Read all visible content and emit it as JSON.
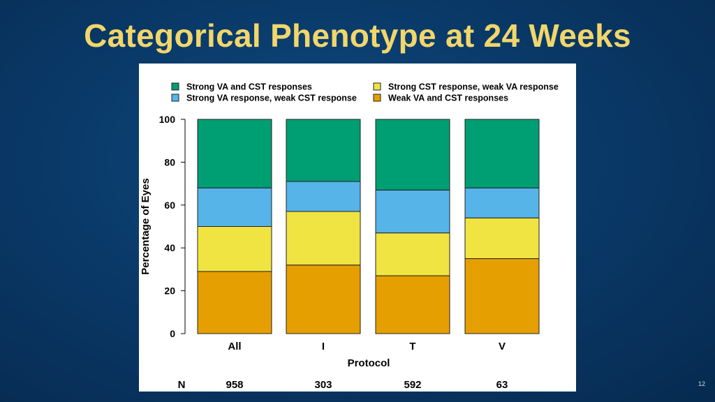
{
  "slide": {
    "title": "Categorical Phenotype at 24 Weeks",
    "page_number": "12"
  },
  "chart_data": {
    "type": "bar",
    "stacked": true,
    "xlabel": "Protocol",
    "ylabel": "Percentage of Eyes",
    "ylim": [
      0,
      100
    ],
    "yticks": [
      0,
      20,
      40,
      60,
      80,
      100
    ],
    "categories": [
      "All",
      "I",
      "T",
      "V"
    ],
    "n_label": "N",
    "n_values": [
      "958",
      "303",
      "592",
      "63"
    ],
    "legend_position": "top",
    "series": [
      {
        "name": "Weak VA and CST responses",
        "color": "#e69f00",
        "values": [
          29,
          32,
          27,
          35
        ]
      },
      {
        "name": "Strong CST response, weak VA response",
        "color": "#f0e442",
        "values": [
          21,
          25,
          20,
          19
        ]
      },
      {
        "name": "Strong VA response, weak CST response",
        "color": "#56b4e9",
        "values": [
          18,
          14,
          20,
          14
        ]
      },
      {
        "name": "Strong VA and CST responses",
        "color": "#009e73",
        "values": [
          32,
          29,
          33,
          32
        ]
      }
    ],
    "legend_order": [
      3,
      1,
      2,
      0
    ]
  }
}
